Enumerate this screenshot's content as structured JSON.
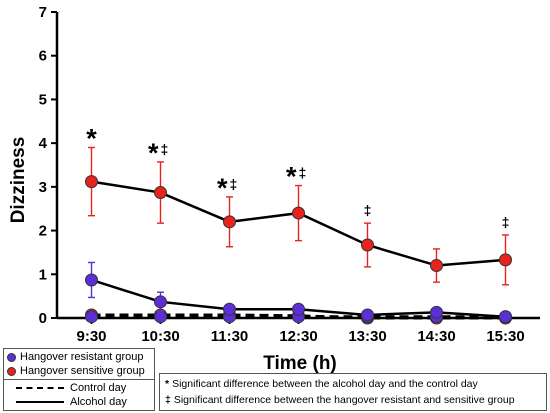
{
  "chart_data": {
    "type": "line",
    "xlabel": "Time (h)",
    "ylabel": "Dizziness",
    "ylim": [
      0,
      7
    ],
    "yticks": [
      0,
      1,
      2,
      3,
      4,
      5,
      6,
      7
    ],
    "categories": [
      "9:30",
      "10:30",
      "11:30",
      "12:30",
      "13:30",
      "14:30",
      "15:30"
    ],
    "series": [
      {
        "name": "Hangover sensitive group",
        "condition": "Alcohol day",
        "color": "#e8231d",
        "values": [
          3.12,
          2.87,
          2.2,
          2.4,
          1.67,
          1.2,
          1.33
        ],
        "error": [
          0.78,
          0.7,
          0.57,
          0.63,
          0.5,
          0.38,
          0.57
        ]
      },
      {
        "name": "Hangover resistant group",
        "condition": "Alcohol day",
        "color": "#5a2fd6",
        "values": [
          0.87,
          0.37,
          0.2,
          0.2,
          0.07,
          0.13,
          0.03
        ],
        "error": [
          0.4,
          0.22,
          0.05,
          0.05,
          0.04,
          0.06,
          0.03
        ]
      },
      {
        "name": "Hangover sensitive group",
        "condition": "Control day",
        "color": "#e8231d",
        "values": [
          0.07,
          0.07,
          0.07,
          0.05,
          0.0,
          0.0,
          0.0
        ],
        "error": [
          0.05,
          0.05,
          0.05,
          0.04,
          0.0,
          0.0,
          0.0
        ]
      },
      {
        "name": "Hangover resistant group",
        "condition": "Control day",
        "color": "#5a2fd6",
        "values": [
          0.03,
          0.03,
          0.03,
          0.03,
          0.03,
          0.03,
          0.03
        ],
        "error": [
          0.02,
          0.02,
          0.02,
          0.02,
          0.02,
          0.02,
          0.02
        ]
      }
    ],
    "annotations": [
      {
        "category": "9:30",
        "marks": [
          "*"
        ]
      },
      {
        "category": "10:30",
        "marks": [
          "*",
          "‡"
        ]
      },
      {
        "category": "11:30",
        "marks": [
          "*",
          "‡"
        ]
      },
      {
        "category": "12:30",
        "marks": [
          "*",
          "‡"
        ]
      },
      {
        "category": "13:30",
        "marks": [
          "‡"
        ]
      },
      {
        "category": "15:30",
        "marks": [
          "‡"
        ]
      }
    ],
    "grid": false
  },
  "legend": {
    "groups": [
      {
        "label": "Hangover resistant group",
        "color": "#5a2fd6"
      },
      {
        "label": "Hangover sensitive group",
        "color": "#e8231d"
      }
    ],
    "conditions": [
      {
        "label": "Control day",
        "style": "dashed"
      },
      {
        "label": "Alcohol day",
        "style": "solid"
      }
    ]
  },
  "notes": [
    {
      "symbol": "*",
      "text": "Significant difference between the alcohol day and the control day"
    },
    {
      "symbol": "‡",
      "text": "Significant difference between the hangover resistant and sensitive group"
    }
  ]
}
